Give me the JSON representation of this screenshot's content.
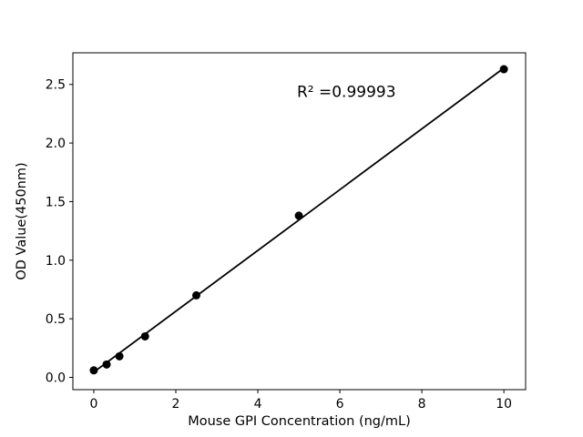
{
  "chart_data": {
    "type": "scatter",
    "title": "",
    "xlabel": "Mouse GPI Concentration (ng/mL)",
    "ylabel": "OD Value(450nm)",
    "points": {
      "x": [
        0,
        0.313,
        0.625,
        1.25,
        2.5,
        5,
        10
      ],
      "y": [
        0.06,
        0.11,
        0.18,
        0.35,
        0.7,
        1.38,
        2.63
      ]
    },
    "fit_line": {
      "x": [
        0,
        10
      ],
      "y": [
        0.045,
        2.64
      ]
    },
    "annotation": {
      "text": "R² =0.99993",
      "x": 6.16,
      "y": 2.44
    },
    "xlim": [
      -0.51,
      10.53
    ],
    "ylim": [
      -0.105,
      2.77
    ],
    "xticks": {
      "values": [
        0,
        2,
        4,
        6,
        8,
        10
      ],
      "labels": [
        "0",
        "2",
        "4",
        "6",
        "8",
        "10"
      ]
    },
    "yticks": {
      "values": [
        0,
        0.5,
        1.0,
        1.5,
        2.0,
        2.5
      ],
      "labels": [
        "0.0",
        "0.5",
        "1.0",
        "1.5",
        "2.0",
        "2.5"
      ]
    },
    "colors": {
      "marker": "#000000",
      "line": "#000000",
      "axis": "#000000",
      "background": "#ffffff"
    },
    "marker_radius": 4.5,
    "line_width": 1.8,
    "grid": false,
    "legend": null
  }
}
